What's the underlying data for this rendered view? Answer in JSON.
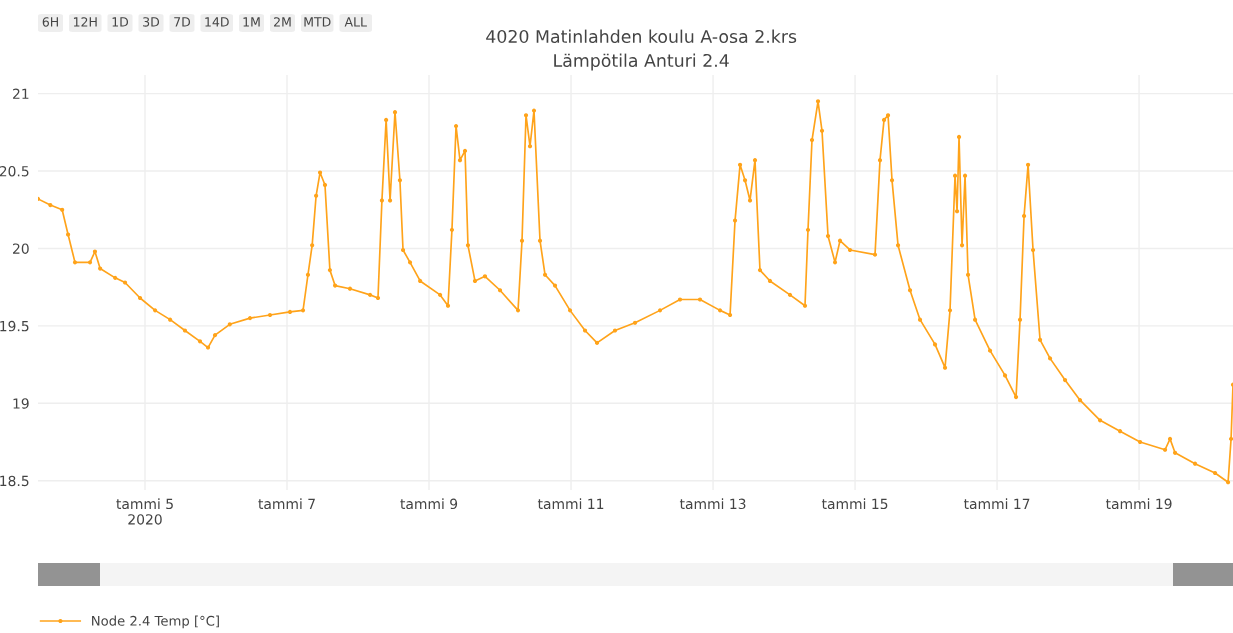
{
  "chart_data": {
    "type": "line",
    "title": "4020 Matinlahden koulu A-osa 2.krs",
    "subtitle": "Lämpötila Anturi 2.4",
    "annotations": [
      "6H",
      "12H",
      "1D",
      "3D",
      "7D",
      "14D",
      "1M",
      "2M",
      "MTD",
      "ALL"
    ],
    "x": [
      "2020-01-03T11:50",
      "2020-01-03T16:00",
      "2020-01-03T20:00",
      "2020-01-03T22:00",
      "2020-01-04T00:20",
      "2020-01-04T05:25",
      "2020-01-04T07:05",
      "2020-01-04T08:50",
      "2020-01-04T13:55",
      "2020-01-04T17:15",
      "2020-01-04T22:20",
      "2020-01-05T03:25",
      "2020-01-05T08:30",
      "2020-01-05T13:30",
      "2020-01-05T18:35",
      "2020-01-05T21:18",
      "2020-01-05T23:40",
      "2020-01-06T04:40",
      "2020-01-06T11:30",
      "2020-01-06T18:15",
      "2020-01-07T01:00",
      "2020-01-07T05:25",
      "2020-01-07T07:05",
      "2020-01-07T08:30",
      "2020-01-07T09:50",
      "2020-01-07T11:10",
      "2020-01-07T12:50",
      "2020-01-07T14:30",
      "2020-01-07T16:15",
      "2020-01-07T21:18",
      "2020-01-08T04:05",
      "2020-01-08T06:45",
      "2020-01-08T08:05",
      "2020-01-08T09:30",
      "2020-01-08T10:50",
      "2020-01-08T12:30",
      "2020-01-08T14:10",
      "2020-01-08T15:13",
      "2020-01-08T17:35",
      "2020-01-08T21:00",
      "2020-01-09T03:45",
      "2020-01-09T06:25",
      "2020-01-09T07:45",
      "2020-01-09T09:08",
      "2020-01-09T10:28",
      "2020-01-09T12:10",
      "2020-01-09T13:10",
      "2020-01-09T15:32",
      "2020-01-09T18:55",
      "2020-01-10T00:00",
      "2020-01-10T06:05",
      "2020-01-10T07:26",
      "2020-01-10T08:47",
      "2020-01-10T10:08",
      "2020-01-10T11:29",
      "2020-01-10T13:31",
      "2020-01-10T15:13",
      "2020-01-10T18:35",
      "2020-01-10T23:40",
      "2020-01-11T04:44",
      "2020-01-11T08:47",
      "2020-01-11T14:52",
      "2020-01-11T21:38",
      "2020-01-12T06:05",
      "2020-01-12T12:50",
      "2020-01-12T19:36",
      "2020-01-13T02:22",
      "2020-01-13T05:45",
      "2020-01-13T07:26",
      "2020-01-13T09:08",
      "2020-01-13T10:49",
      "2020-01-13T12:30",
      "2020-01-13T14:11",
      "2020-01-13T15:52",
      "2020-01-13T19:15",
      "2020-01-14T02:01",
      "2020-01-14T07:05",
      "2020-01-14T08:06",
      "2020-01-14T09:27",
      "2020-01-14T11:29",
      "2020-01-14T12:50",
      "2020-01-14T14:52",
      "2020-01-14T17:14",
      "2020-01-14T18:55",
      "2020-01-14T22:18",
      "2020-01-15T06:45",
      "2020-01-15T08:26",
      "2020-01-15T09:48",
      "2020-01-15T11:09",
      "2020-01-15T12:30",
      "2020-01-15T14:32",
      "2020-01-15T18:35",
      "2020-01-15T21:58",
      "2020-01-16T03:02",
      "2020-01-16T06:25",
      "2020-01-16T08:06",
      "2020-01-16T09:48",
      "2020-01-16T10:29",
      "2020-01-16T11:09",
      "2020-01-16T12:10",
      "2020-01-16T13:11",
      "2020-01-16T14:12",
      "2020-01-16T16:34",
      "2020-01-16T21:38",
      "2020-01-17T02:42",
      "2020-01-17T06:25",
      "2020-01-17T07:46",
      "2020-01-17T09:08",
      "2020-01-17T10:29",
      "2020-01-17T12:10",
      "2020-01-17T14:32",
      "2020-01-17T17:55",
      "2020-01-17T22:59",
      "2020-01-18T04:03",
      "2020-01-18T10:49",
      "2020-01-18T17:35",
      "2020-01-19T00:21",
      "2020-01-19T08:47",
      "2020-01-19T10:28",
      "2020-01-19T12:10",
      "2020-01-19T18:56",
      "2020-01-20T01:41",
      "2020-01-20T06:05",
      "2020-01-20T07:06",
      "2020-01-20T07:45"
    ],
    "series": [
      {
        "name": "Node 2.4 Temp [°C]",
        "color": "#ffa31a",
        "values": [
          20.32,
          20.28,
          20.25,
          20.09,
          19.91,
          19.91,
          19.98,
          19.87,
          19.81,
          19.78,
          19.68,
          19.6,
          19.54,
          19.47,
          19.4,
          19.36,
          19.44,
          19.51,
          19.55,
          19.57,
          19.59,
          19.6,
          19.83,
          20.02,
          20.34,
          20.49,
          20.41,
          19.86,
          19.76,
          19.74,
          19.7,
          19.68,
          20.31,
          20.83,
          20.31,
          20.88,
          20.44,
          19.99,
          19.91,
          19.79,
          19.7,
          19.63,
          20.12,
          20.79,
          20.57,
          20.63,
          20.02,
          19.79,
          19.82,
          19.73,
          19.6,
          20.05,
          20.86,
          20.66,
          20.89,
          20.05,
          19.83,
          19.76,
          19.6,
          19.47,
          19.39,
          19.47,
          19.52,
          19.6,
          19.67,
          19.67,
          19.6,
          19.57,
          20.18,
          20.54,
          20.44,
          20.31,
          20.57,
          19.86,
          19.79,
          19.7,
          19.63,
          20.12,
          20.7,
          20.95,
          20.76,
          20.08,
          19.91,
          20.05,
          19.99,
          19.96,
          20.57,
          20.83,
          20.86,
          20.44,
          20.02,
          19.73,
          19.54,
          19.38,
          19.23,
          19.6,
          20.47,
          20.24,
          20.72,
          20.02,
          20.47,
          19.83,
          19.54,
          19.34,
          19.18,
          19.04,
          19.54,
          20.21,
          20.54,
          19.99,
          19.41,
          19.29,
          19.15,
          19.02,
          18.89,
          18.82,
          18.75,
          18.7,
          18.77,
          18.68,
          18.61,
          18.55,
          18.49,
          18.77,
          19.12
        ]
      }
    ],
    "xlim": [
      "2020-01-03T11:50",
      "2020-01-20T07:45"
    ],
    "xticks": [
      {
        "value": "2020-01-05",
        "label": "tammi 5\n2020"
      },
      {
        "value": "2020-01-07",
        "label": "tammi 7"
      },
      {
        "value": "2020-01-09",
        "label": "tammi 9"
      },
      {
        "value": "2020-01-11",
        "label": "tammi 11"
      },
      {
        "value": "2020-01-13",
        "label": "tammi 13"
      },
      {
        "value": "2020-01-15",
        "label": "tammi 15"
      },
      {
        "value": "2020-01-17",
        "label": "tammi 17"
      },
      {
        "value": "2020-01-19",
        "label": "tammi 19"
      }
    ],
    "ylim": [
      18.44,
      21.12
    ],
    "yticks": [
      18.5,
      19,
      19.5,
      20,
      20.5,
      21
    ],
    "grid": true,
    "legend": "bottom left",
    "marker": "circle",
    "line_style": "solid"
  }
}
